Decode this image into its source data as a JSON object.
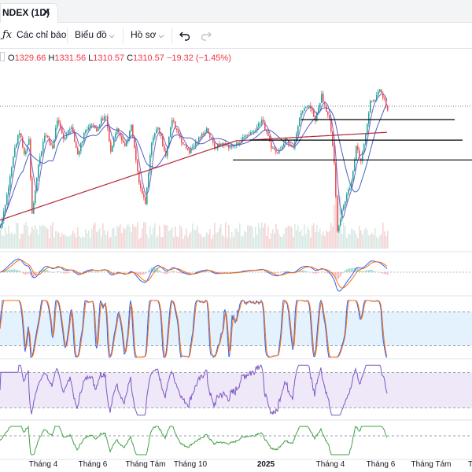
{
  "tab": {
    "title": "NDEX (1D)",
    "close": "✕"
  },
  "toolbar": {
    "indicators_icon": "ƒx",
    "indicators": "Các chỉ báo",
    "chart_type": "Biểu đồ",
    "profile": "Hồ sơ",
    "undo_icon": "undo-icon",
    "redo_icon": "redo-icon",
    "chevron_icon": "chevron-down-icon"
  },
  "ohlc": {
    "o_label": "O",
    "o": "1329.66",
    "h_label": "H",
    "h": "1331.56",
    "l_label": "L",
    "l": "1310.57",
    "c_label": "C",
    "c": "1310.57",
    "change": "−19.32 (−1.45%)"
  },
  "colors": {
    "up": "#26a69a",
    "down": "#ef5350",
    "ma_fast": "#7b61c9",
    "ma_mid": "#4a5fbf",
    "ma_slow": "#b2293a",
    "macd": "#2962ff",
    "signal": "#ff6d00",
    "stoch_k": "#2962ff",
    "stoch_d": "#ff6d00",
    "rsi": "#7e57c2",
    "osc": "#43a047",
    "level": "#787b86"
  },
  "chart_data": {
    "type": "line",
    "x_ticks": [
      "Tháng 4",
      "Tháng 6",
      "Tháng Tám",
      "Tháng 10",
      "2025",
      "Tháng 4",
      "Tháng 6",
      "Tháng Tám",
      "T"
    ],
    "main": {
      "ylim": [
        1120,
        1360
      ],
      "price_anchors": [
        [
          0,
          1148
        ],
        [
          10,
          1205
        ],
        [
          18,
          1260
        ],
        [
          24,
          1283
        ],
        [
          30,
          1250
        ],
        [
          36,
          1272
        ],
        [
          40,
          1168
        ],
        [
          48,
          1235
        ],
        [
          56,
          1280
        ],
        [
          66,
          1260
        ],
        [
          72,
          1300
        ],
        [
          80,
          1272
        ],
        [
          90,
          1292
        ],
        [
          98,
          1250
        ],
        [
          106,
          1280
        ],
        [
          114,
          1295
        ],
        [
          122,
          1285
        ],
        [
          128,
          1300
        ],
        [
          134,
          1305
        ],
        [
          140,
          1255
        ],
        [
          148,
          1290
        ],
        [
          158,
          1262
        ],
        [
          166,
          1290
        ],
        [
          176,
          1210
        ],
        [
          184,
          1180
        ],
        [
          192,
          1270
        ],
        [
          200,
          1290
        ],
        [
          210,
          1250
        ],
        [
          218,
          1300
        ],
        [
          232,
          1265
        ],
        [
          240,
          1255
        ],
        [
          250,
          1270
        ],
        [
          262,
          1287
        ],
        [
          272,
          1260
        ],
        [
          280,
          1266
        ],
        [
          292,
          1262
        ],
        [
          300,
          1265
        ],
        [
          312,
          1278
        ],
        [
          322,
          1284
        ],
        [
          332,
          1300
        ],
        [
          344,
          1262
        ],
        [
          352,
          1252
        ],
        [
          362,
          1273
        ],
        [
          372,
          1262
        ],
        [
          382,
          1310
        ],
        [
          392,
          1322
        ],
        [
          400,
          1300
        ],
        [
          408,
          1335
        ],
        [
          418,
          1300
        ],
        [
          424,
          1240
        ],
        [
          428,
          1140
        ],
        [
          434,
          1172
        ],
        [
          440,
          1195
        ],
        [
          446,
          1212
        ],
        [
          452,
          1262
        ],
        [
          458,
          1240
        ],
        [
          464,
          1282
        ],
        [
          470,
          1326
        ],
        [
          476,
          1330
        ],
        [
          482,
          1340
        ],
        [
          488,
          1329
        ],
        [
          492,
          1310
        ]
      ],
      "trend_lines": [
        {
          "y": 1300,
          "x_end": 578
        },
        {
          "y": 1271,
          "x_end": 588
        },
        {
          "y": 1243,
          "x_end": 600
        }
      ]
    },
    "macd_panel": {
      "ylim": [
        -1,
        1
      ]
    },
    "stoch_panel": {
      "ylim": [
        0,
        100
      ],
      "levels": [
        80,
        20
      ]
    },
    "rsi_panel": {
      "ylim": [
        20,
        80
      ],
      "levels": [
        70,
        30
      ]
    },
    "osc_panel": {
      "ylim": [
        -1,
        1
      ]
    }
  }
}
